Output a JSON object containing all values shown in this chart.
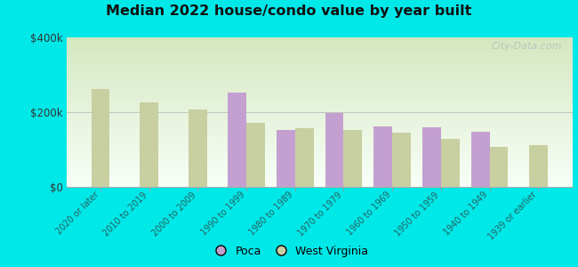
{
  "title": "Median 2022 house/condo value by year built",
  "categories": [
    "2020 or later",
    "2010 to 2019",
    "2000 to 2009",
    "1990 to 1999",
    "1980 to 1989",
    "1970 to 1979",
    "1960 to 1969",
    "1950 to 1959",
    "1940 to 1949",
    "1939 or earlier"
  ],
  "poca_values": [
    null,
    null,
    null,
    252000,
    152000,
    198000,
    163000,
    160000,
    148000,
    null
  ],
  "wv_values": [
    263000,
    226000,
    208000,
    172000,
    158000,
    153000,
    146000,
    128000,
    108000,
    113000
  ],
  "poca_color": "#c4a0d0",
  "wv_color": "#c8cfa0",
  "bg_top": "#f0fff0",
  "bg_bottom": "#d0e8c0",
  "outer_background": "#00e8e8",
  "ylim": [
    0,
    400000
  ],
  "ytick_labels": [
    "$0",
    "$200k",
    "$400k"
  ],
  "ytick_vals": [
    0,
    200000,
    400000
  ],
  "legend_poca": "Poca",
  "legend_wv": "West Virginia",
  "watermark": "City-Data.com",
  "bar_width": 0.38
}
